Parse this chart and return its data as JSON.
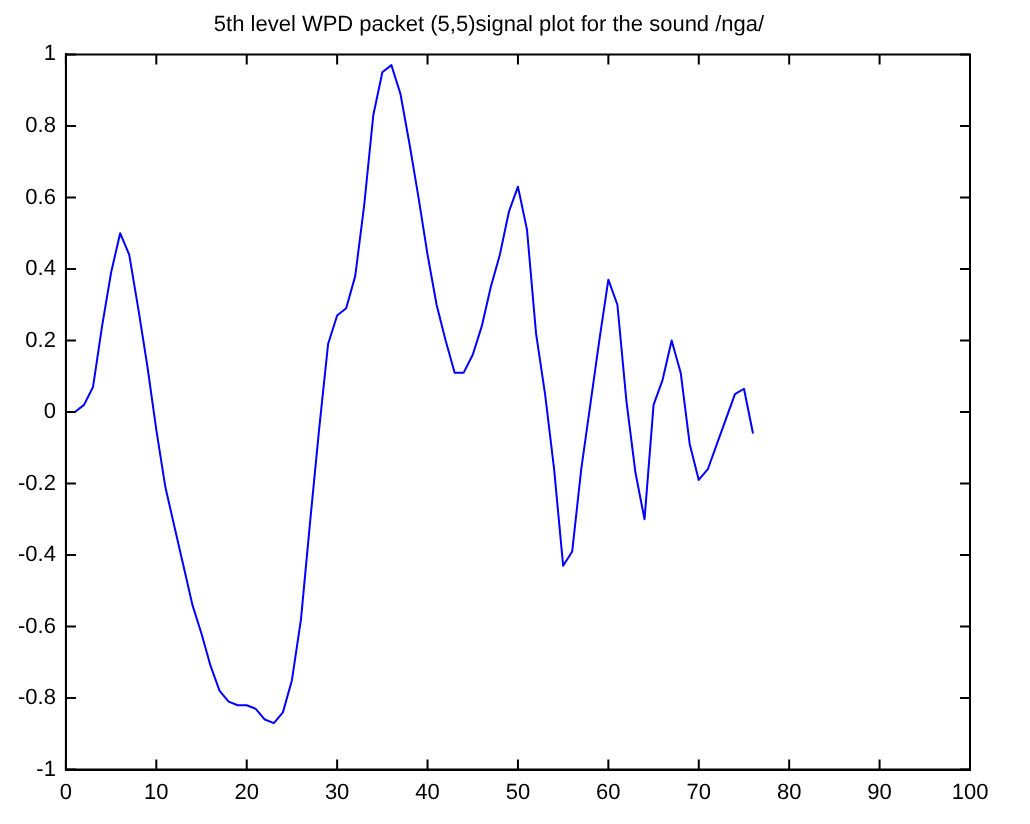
{
  "chart_data": {
    "type": "line",
    "title": "5th level WPD packet (5,5)signal plot for the sound /nga/",
    "x": [
      1,
      2,
      3,
      4,
      5,
      6,
      7,
      8,
      9,
      10,
      11,
      12,
      13,
      14,
      15,
      16,
      17,
      18,
      19,
      20,
      21,
      22,
      23,
      24,
      25,
      26,
      27,
      28,
      29,
      30,
      31,
      32,
      33,
      34,
      35,
      36,
      37,
      38,
      39,
      40,
      41,
      42,
      43,
      44,
      45,
      46,
      47,
      48,
      49,
      50,
      51,
      52,
      53,
      54,
      55,
      56,
      57,
      58,
      59,
      60,
      61,
      62,
      63,
      64,
      65,
      66,
      67,
      68,
      69,
      70,
      71,
      72,
      73,
      74,
      75,
      76
    ],
    "series": [
      {
        "color": "#0000ff",
        "values": [
          0,
          0.02,
          0.07,
          0.24,
          0.39,
          0.5,
          0.44,
          0.29,
          0.13,
          -0.05,
          -0.21,
          -0.32,
          -0.43,
          -0.54,
          -0.62,
          -0.71,
          -0.78,
          -0.81,
          -0.82,
          -0.82,
          -0.83,
          -0.86,
          -0.87,
          -0.84,
          -0.75,
          -0.58,
          -0.31,
          -0.05,
          0.19,
          0.27,
          0.29,
          0.38,
          0.58,
          0.83,
          0.95,
          0.97,
          0.89,
          0.75,
          0.6,
          0.44,
          0.3,
          0.2,
          0.11,
          0.11,
          0.16,
          0.24,
          0.35,
          0.44,
          0.56,
          0.63,
          0.51,
          0.22,
          0.05,
          -0.16,
          -0.43,
          -0.39,
          -0.16,
          0.02,
          0.2,
          0.37,
          0.3,
          0.03,
          -0.17,
          -0.3,
          0.02,
          0.09,
          0.2,
          0.11,
          -0.09,
          -0.19,
          -0.16,
          -0.09,
          -0.02,
          0.05,
          0.065,
          -0.06
        ]
      }
    ],
    "xlim": [
      0,
      100
    ],
    "xticks": [
      0,
      10,
      20,
      30,
      40,
      50,
      60,
      70,
      80,
      90,
      100
    ],
    "ylim": [
      -1,
      1
    ],
    "yticks": [
      -1,
      -0.8,
      -0.6,
      -0.4,
      -0.2,
      0,
      0.2,
      0.4,
      0.6,
      0.8,
      1
    ],
    "grid": false,
    "legend": false,
    "marker": "none",
    "line_style": "solid"
  }
}
